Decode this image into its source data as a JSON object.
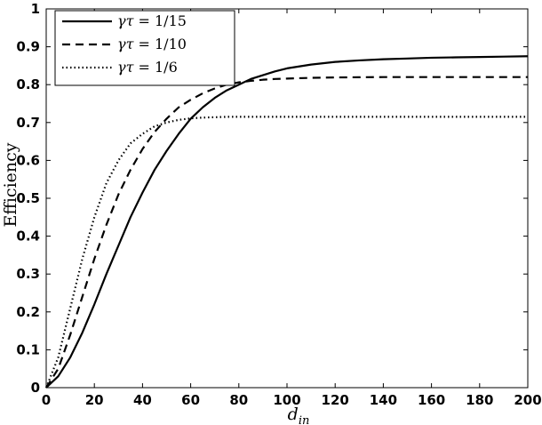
{
  "chart_data": {
    "type": "line",
    "title": "",
    "xlabel": "d",
    "xlabel_sub": "in",
    "ylabel": "Efficiency",
    "xlim": [
      0,
      200
    ],
    "ylim": [
      0,
      1
    ],
    "x_ticks": [
      "0",
      "20",
      "40",
      "60",
      "80",
      "100",
      "120",
      "140",
      "160",
      "180",
      "200"
    ],
    "y_ticks": [
      "0",
      "0.1",
      "0.2",
      "0.3",
      "0.4",
      "0.5",
      "0.6",
      "0.7",
      "0.8",
      "0.9",
      "1"
    ],
    "grid": false,
    "legend_position": "top-left",
    "x": [
      0,
      5,
      10,
      15,
      20,
      25,
      30,
      35,
      40,
      45,
      50,
      55,
      60,
      65,
      70,
      75,
      80,
      85,
      90,
      95,
      100,
      110,
      120,
      130,
      140,
      150,
      160,
      170,
      180,
      190,
      200
    ],
    "series": [
      {
        "name": "γτ = 1/15",
        "style": "solid",
        "values": [
          0.0,
          0.03,
          0.08,
          0.145,
          0.22,
          0.3,
          0.375,
          0.45,
          0.515,
          0.575,
          0.625,
          0.67,
          0.71,
          0.74,
          0.765,
          0.785,
          0.8,
          0.815,
          0.825,
          0.835,
          0.843,
          0.853,
          0.86,
          0.864,
          0.867,
          0.869,
          0.871,
          0.872,
          0.873,
          0.874,
          0.875
        ]
      },
      {
        "name": "γτ = 1/10",
        "style": "dashed",
        "values": [
          0.0,
          0.05,
          0.14,
          0.24,
          0.34,
          0.43,
          0.51,
          0.575,
          0.63,
          0.675,
          0.71,
          0.74,
          0.76,
          0.777,
          0.79,
          0.8,
          0.806,
          0.81,
          0.813,
          0.815,
          0.816,
          0.818,
          0.819,
          0.8195,
          0.82,
          0.82,
          0.82,
          0.82,
          0.82,
          0.82,
          0.82
        ]
      },
      {
        "name": "γτ = 1/6",
        "style": "dotted",
        "values": [
          0.0,
          0.08,
          0.21,
          0.34,
          0.45,
          0.54,
          0.6,
          0.645,
          0.67,
          0.69,
          0.7,
          0.707,
          0.711,
          0.713,
          0.714,
          0.715,
          0.715,
          0.715,
          0.715,
          0.715,
          0.715,
          0.715,
          0.715,
          0.715,
          0.715,
          0.715,
          0.715,
          0.715,
          0.715,
          0.715,
          0.715
        ]
      }
    ],
    "legend": [
      {
        "label_prefix": "γτ",
        "label_value": " = 1/15"
      },
      {
        "label_prefix": "γτ",
        "label_value": " = 1/10"
      },
      {
        "label_prefix": "γτ",
        "label_value": " = 1/6"
      }
    ]
  }
}
